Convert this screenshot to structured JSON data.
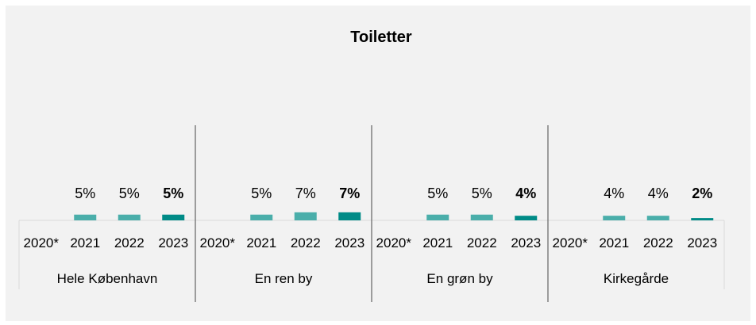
{
  "chart_data": {
    "type": "bar",
    "title": "Toiletter",
    "groups": [
      "Hele København",
      "En ren by",
      "En grøn by",
      "Kirkegårde"
    ],
    "categories": [
      "2020*",
      "2021",
      "2022",
      "2023"
    ],
    "values": [
      [
        null,
        5,
        5,
        5
      ],
      [
        null,
        5,
        7,
        7
      ],
      [
        null,
        5,
        5,
        4
      ],
      [
        null,
        4,
        4,
        2
      ]
    ],
    "value_labels": [
      [
        "",
        "5%",
        "5%",
        "5%"
      ],
      [
        "",
        "5%",
        "7%",
        "7%"
      ],
      [
        "",
        "5%",
        "5%",
        "4%"
      ],
      [
        "",
        "4%",
        "4%",
        "2%"
      ]
    ],
    "unit": "%",
    "ylim": [
      0,
      100
    ],
    "grid": false,
    "legend": "none",
    "colors": {
      "earlier_years": "#4aaeaa",
      "latest_year": "#008b87",
      "divider": "#7f7f7f",
      "axis": "#d9d9d9",
      "background": "#f2f2f2"
    }
  }
}
